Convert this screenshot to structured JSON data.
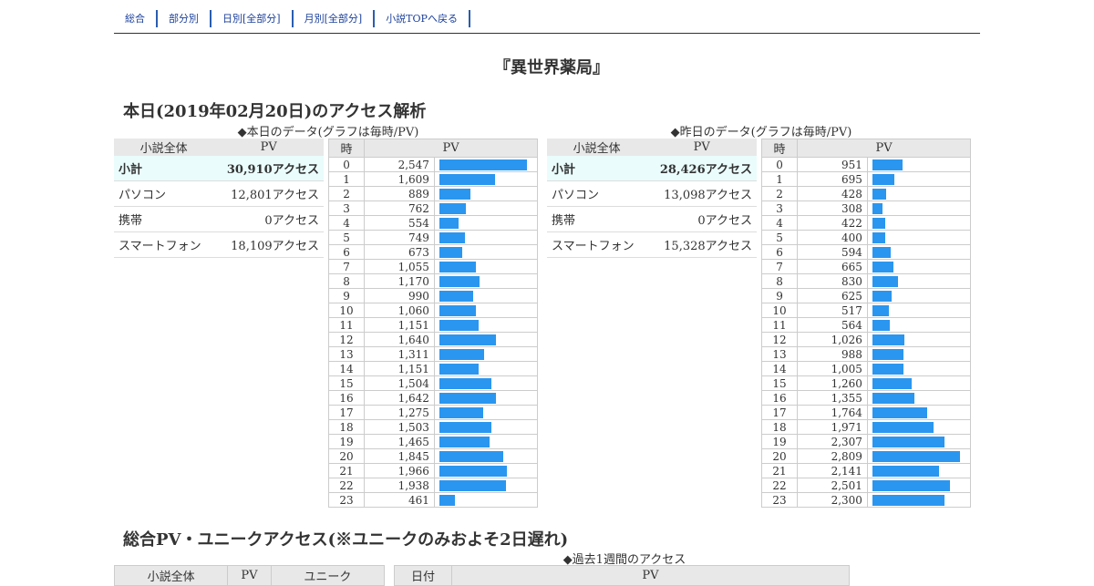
{
  "nav": [
    "総合",
    "部分別",
    "日別[全部分]",
    "月別[全部分]",
    "小説TOPへ戻る"
  ],
  "title": "『異世界薬局』",
  "section1": "本日(2019年02月20日)のアクセス解析",
  "today": {
    "caption": "◆本日のデータ(グラフは毎時/PV)",
    "summary_headers": [
      "小説全体",
      "PV"
    ],
    "summary": [
      {
        "label": "小計",
        "value": "30,910アクセス"
      },
      {
        "label": "パソコン",
        "value": "12,801アクセス"
      },
      {
        "label": "携帯",
        "value": "0アクセス"
      },
      {
        "label": "スマートフォン",
        "value": "18,109アクセス"
      }
    ],
    "hour_headers": [
      "時",
      "PV"
    ],
    "hours": [
      "0",
      "1",
      "2",
      "3",
      "4",
      "5",
      "6",
      "7",
      "8",
      "9",
      "10",
      "11",
      "12",
      "13",
      "14",
      "15",
      "16",
      "17",
      "18",
      "19",
      "20",
      "21",
      "22",
      "23"
    ],
    "pv_labels": [
      "2,547",
      "1,609",
      "889",
      "762",
      "554",
      "749",
      "673",
      "1,055",
      "1,170",
      "990",
      "1,060",
      "1,151",
      "1,640",
      "1,311",
      "1,151",
      "1,504",
      "1,642",
      "1,275",
      "1,503",
      "1,465",
      "1,845",
      "1,966",
      "1,938",
      "461"
    ],
    "pv": [
      2547,
      1609,
      889,
      762,
      554,
      749,
      673,
      1055,
      1170,
      990,
      1060,
      1151,
      1640,
      1311,
      1151,
      1504,
      1642,
      1275,
      1503,
      1465,
      1845,
      1966,
      1938,
      461
    ]
  },
  "yesterday": {
    "caption": "◆昨日のデータ(グラフは毎時/PV)",
    "summary_headers": [
      "小説全体",
      "PV"
    ],
    "summary": [
      {
        "label": "小計",
        "value": "28,426アクセス"
      },
      {
        "label": "パソコン",
        "value": "13,098アクセス"
      },
      {
        "label": "携帯",
        "value": "0アクセス"
      },
      {
        "label": "スマートフォン",
        "value": "15,328アクセス"
      }
    ],
    "hour_headers": [
      "時",
      "PV"
    ],
    "hours": [
      "0",
      "1",
      "2",
      "3",
      "4",
      "5",
      "6",
      "7",
      "8",
      "9",
      "10",
      "11",
      "12",
      "13",
      "14",
      "15",
      "16",
      "17",
      "18",
      "19",
      "20",
      "21",
      "22",
      "23"
    ],
    "pv_labels": [
      "951",
      "695",
      "428",
      "308",
      "422",
      "400",
      "594",
      "665",
      "830",
      "625",
      "517",
      "564",
      "1,026",
      "988",
      "1,005",
      "1,260",
      "1,355",
      "1,764",
      "1,971",
      "2,307",
      "2,809",
      "2,141",
      "2,501",
      "2,300"
    ],
    "pv": [
      951,
      695,
      428,
      308,
      422,
      400,
      594,
      665,
      830,
      625,
      517,
      564,
      1026,
      988,
      1005,
      1260,
      1355,
      1764,
      1971,
      2307,
      2809,
      2141,
      2501,
      2300
    ]
  },
  "section2": "総合PV・ユニークアクセス(※ユニークのみおよそ2日遅れ)",
  "week_caption": "◆過去1週間のアクセス",
  "bottom_left_headers": [
    "小説全体",
    "PV",
    "ユニーク"
  ],
  "bottom_right_headers": [
    "日付",
    "PV"
  ],
  "colors": {
    "bar": "#2a96f0",
    "subtotal_bg": "#eafcfc",
    "header_bg": "#e8e8e8",
    "nav": "#1a3f9a"
  }
}
